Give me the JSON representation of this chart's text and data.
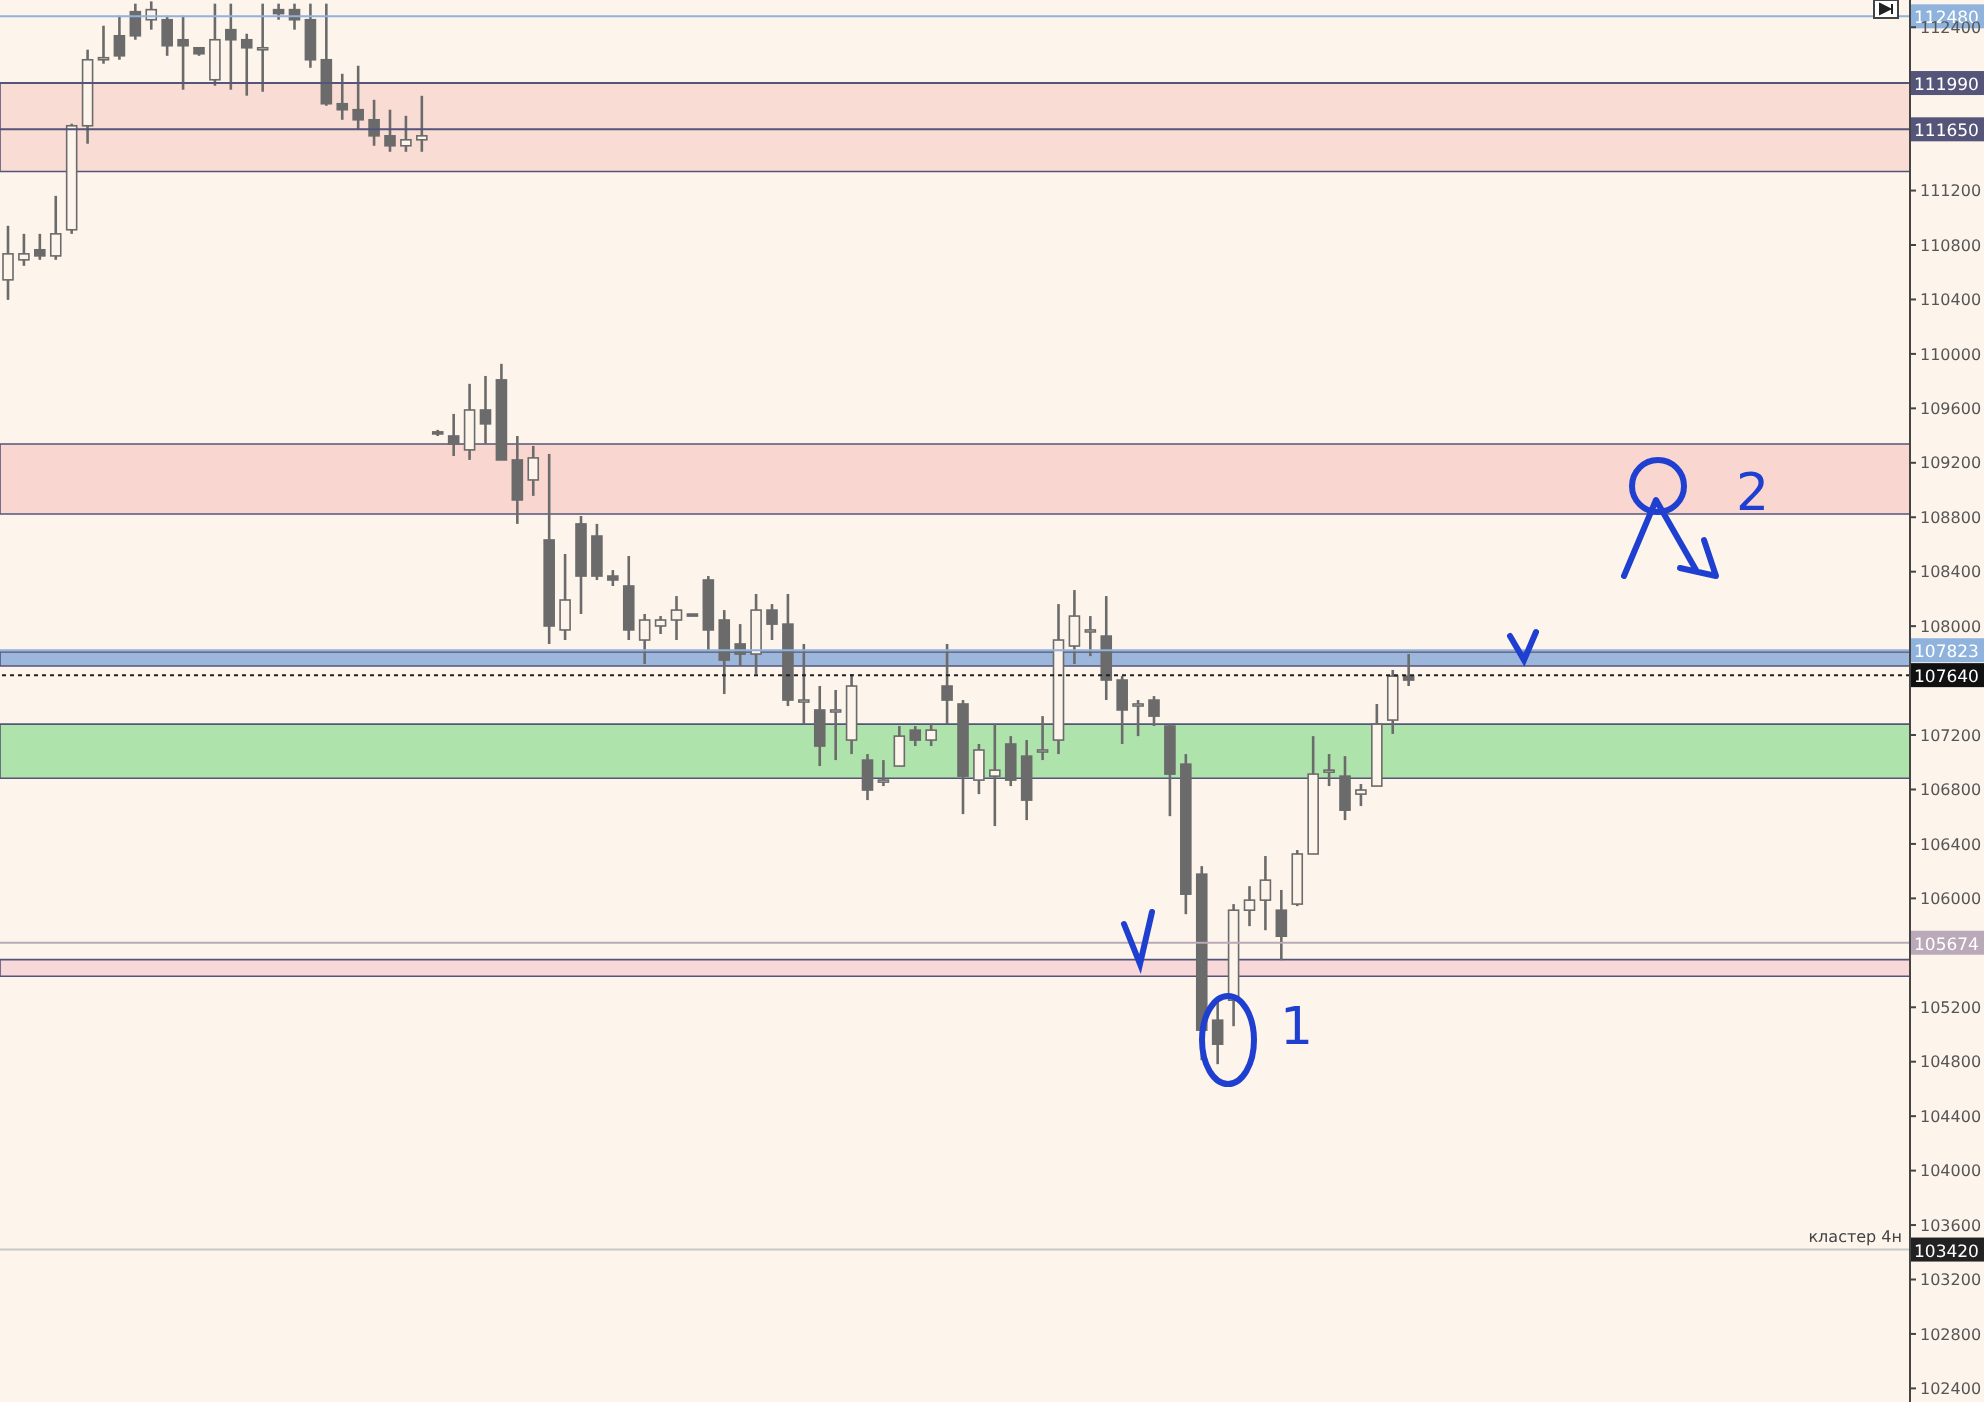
{
  "chart_data": {
    "type": "candlestick",
    "color": "#6b6b6b",
    "tick_labels": "y",
    "ylim": [
      102300,
      112600
    ],
    "yticks": [
      102400,
      102800,
      103200,
      103600,
      104000,
      104400,
      104800,
      105200,
      106000,
      106400,
      106800,
      107200,
      108000,
      108400,
      108800,
      109200,
      109600,
      110000,
      110400,
      110800,
      111200,
      112400
    ],
    "categories": [
      null,
      null,
      null,
      null,
      null,
      null,
      null,
      null,
      null,
      null,
      null,
      null,
      null,
      null,
      null,
      null,
      null,
      null,
      null,
      null,
      null,
      null,
      null,
      null,
      null,
      null,
      null,
      null,
      null,
      null,
      null,
      null,
      null,
      null,
      null,
      null,
      null,
      null,
      null,
      null,
      null,
      null,
      null,
      null,
      null,
      null,
      null,
      null,
      null,
      null,
      null,
      null,
      null,
      null,
      null,
      null,
      null,
      null,
      null,
      null,
      null,
      null,
      null,
      null,
      null,
      null,
      null,
      null,
      null,
      null,
      null,
      null,
      null,
      null,
      null,
      null,
      null,
      null,
      null,
      null,
      null,
      null,
      null,
      null,
      null,
      null,
      null,
      null,
      null,
      null,
      null,
      null,
      null,
      null,
      null,
      null,
      null,
      null,
      null,
      null,
      null,
      null,
      null,
      null,
      null,
      null,
      null,
      null,
      null,
      null,
      null,
      null,
      null,
      null,
      null,
      null,
      null,
      null,
      null,
      null
    ],
    "ohlc": [
      [
        110544,
        110941,
        110397,
        110735
      ],
      [
        110691,
        110882,
        110647,
        110735
      ],
      [
        110765,
        110882,
        110691,
        110720
      ],
      [
        110720,
        111161,
        110691,
        110882
      ],
      [
        110912,
        111691,
        110882,
        111676
      ],
      [
        111676,
        112235,
        111544,
        112161
      ],
      [
        112161,
        112411,
        112132,
        112176
      ],
      [
        112337,
        112484,
        112161,
        112190
      ],
      [
        112514,
        112573,
        112308,
        112337
      ],
      [
        112455,
        112590,
        112382,
        112529
      ],
      [
        112455,
        112484,
        112190,
        112264
      ],
      [
        112308,
        112484,
        111941,
        112264
      ],
      [
        112249,
        112249,
        112190,
        112205
      ],
      [
        112014,
        112573,
        111970,
        112308
      ],
      [
        112382,
        112573,
        111941,
        112308
      ],
      [
        112308,
        112352,
        111897,
        112249
      ],
      [
        112249,
        112573,
        111926,
        112249
      ],
      [
        112529,
        112573,
        112455,
        112500
      ],
      [
        112529,
        112573,
        112382,
        112455
      ],
      [
        112455,
        112573,
        112102,
        112161
      ],
      [
        112161,
        112573,
        111823,
        111838
      ],
      [
        111838,
        112058,
        111720,
        111794
      ],
      [
        111794,
        112117,
        111647,
        111720
      ],
      [
        111720,
        111867,
        111529,
        111602
      ],
      [
        111602,
        111794,
        111485,
        111529
      ],
      [
        111529,
        111749,
        111485,
        111573
      ],
      [
        111573,
        111896,
        111485,
        111602
      ],
      [
        109427,
        109442,
        109397,
        109412
      ],
      [
        109397,
        109559,
        109250,
        109339
      ],
      [
        109295,
        109780,
        109221,
        109588
      ],
      [
        109588,
        109838,
        109339,
        109486
      ],
      [
        109809,
        109927,
        109221,
        109221
      ],
      [
        109221,
        109397,
        108751,
        108927
      ],
      [
        109074,
        109324,
        108957,
        109236
      ],
      [
        108633,
        109265,
        107869,
        108001
      ],
      [
        107972,
        108530,
        107898,
        108192
      ],
      [
        108751,
        108809,
        108089,
        108368
      ],
      [
        108662,
        108751,
        108339,
        108368
      ],
      [
        108368,
        108412,
        108295,
        108339
      ],
      [
        108295,
        108515,
        107898,
        107972
      ],
      [
        107898,
        108089,
        107722,
        108045
      ],
      [
        108001,
        108074,
        107942,
        108045
      ],
      [
        108045,
        108221,
        107898,
        108118
      ],
      [
        108089,
        108089,
        108074,
        108074
      ],
      [
        108339,
        108368,
        107824,
        107972
      ],
      [
        108045,
        108118,
        107501,
        107751
      ],
      [
        107869,
        108015,
        107707,
        107795
      ],
      [
        107795,
        108236,
        107648,
        108118
      ],
      [
        108118,
        108162,
        107898,
        108015
      ],
      [
        108015,
        108236,
        107413,
        107457
      ],
      [
        107457,
        107869,
        107280,
        107457
      ],
      [
        107384,
        107560,
        106972,
        107119
      ],
      [
        107384,
        107531,
        107016,
        107384
      ],
      [
        107163,
        107648,
        107060,
        107560
      ],
      [
        107016,
        107060,
        106722,
        106796
      ],
      [
        106869,
        107016,
        106825,
        106869
      ],
      [
        106972,
        107266,
        106972,
        107192
      ],
      [
        107236,
        107266,
        107119,
        107163
      ],
      [
        107163,
        107280,
        107119,
        107236
      ],
      [
        107560,
        107869,
        107280,
        107457
      ],
      [
        107428,
        107457,
        106619,
        106898
      ],
      [
        106869,
        107134,
        106766,
        107090
      ],
      [
        106898,
        107280,
        106531,
        106942
      ],
      [
        107134,
        107192,
        106825,
        106869
      ],
      [
        107045,
        107163,
        106575,
        106722
      ],
      [
        107090,
        107339,
        107016,
        107090
      ],
      [
        107163,
        108162,
        107060,
        107898
      ],
      [
        107854,
        108265,
        107722,
        108074
      ],
      [
        107972,
        108074,
        107780,
        107972
      ],
      [
        107927,
        108221,
        107457,
        107604
      ],
      [
        107604,
        107633,
        107134,
        107384
      ],
      [
        107428,
        107457,
        107192,
        107428
      ],
      [
        107457,
        107486,
        107266,
        107339
      ],
      [
        107266,
        107280,
        106604,
        106913
      ],
      [
        106986,
        107060,
        105884,
        106031
      ],
      [
        106178,
        106237,
        104811,
        105032
      ],
      [
        105105,
        105252,
        104782,
        104929
      ],
      [
        105252,
        105958,
        105061,
        105913
      ],
      [
        105913,
        106090,
        105796,
        105987
      ],
      [
        105987,
        106311,
        105766,
        106134
      ],
      [
        105913,
        106062,
        105546,
        105722
      ],
      [
        105958,
        106355,
        105943,
        106326
      ],
      [
        106326,
        107192,
        106326,
        106913
      ],
      [
        106942,
        107060,
        106825,
        106942
      ],
      [
        106898,
        107045,
        106575,
        106648
      ],
      [
        106766,
        106840,
        106678,
        106796
      ],
      [
        106825,
        107428,
        106825,
        107280
      ],
      [
        107310,
        107678,
        107208,
        107633
      ],
      [
        107633,
        107795,
        107560,
        107604
      ],
      null,
      null,
      null,
      null,
      null,
      null,
      null,
      null,
      null,
      null,
      null,
      null,
      null,
      null,
      null,
      null,
      null,
      null,
      null,
      null,
      null,
      null,
      null,
      null,
      null,
      null,
      null,
      null,
      null,
      null,
      null
    ],
    "bands": [
      {
        "axis": "y",
        "from": 111340,
        "to": 111990,
        "color": "#f9dcd4"
      },
      {
        "axis": "y",
        "from": 108824,
        "to": 109338,
        "color": "#f9d6d0"
      },
      {
        "axis": "y",
        "from": 107707,
        "to": 107810,
        "color": "#9db6db"
      },
      {
        "axis": "y",
        "from": 106883,
        "to": 107280,
        "color": "#aee3ac"
      },
      {
        "axis": "y",
        "from": 105428,
        "to": 105550,
        "color": "#f8d8d8"
      }
    ],
    "ref_lines": [
      {
        "axis": "y",
        "value": 112480,
        "label": "112480",
        "color": "#8fb3dc",
        "line_style": "solid"
      },
      {
        "axis": "y",
        "value": 111990,
        "label": "111990",
        "color": "#55557a",
        "line_style": "solid"
      },
      {
        "axis": "y",
        "value": 111650,
        "label": "111650",
        "color": "#55557a",
        "line_style": "solid"
      },
      {
        "axis": "y",
        "value": 107823,
        "label": "107823",
        "color": "#8fb3dc",
        "line_style": "solid"
      },
      {
        "axis": "y",
        "value": 107640,
        "label": "107640",
        "color": "#222222",
        "line_style": "dotted"
      },
      {
        "axis": "y",
        "value": 105674,
        "label": "105674",
        "color": "#b9a9b9",
        "line_style": "solid"
      },
      {
        "axis": "y",
        "value": 103420,
        "label": "103420",
        "color": "#c8c8c8",
        "line_style": "solid"
      }
    ],
    "annotations": [
      {
        "text": "кластер 4н",
        "y": 103420
      },
      "1",
      "2"
    ]
  }
}
